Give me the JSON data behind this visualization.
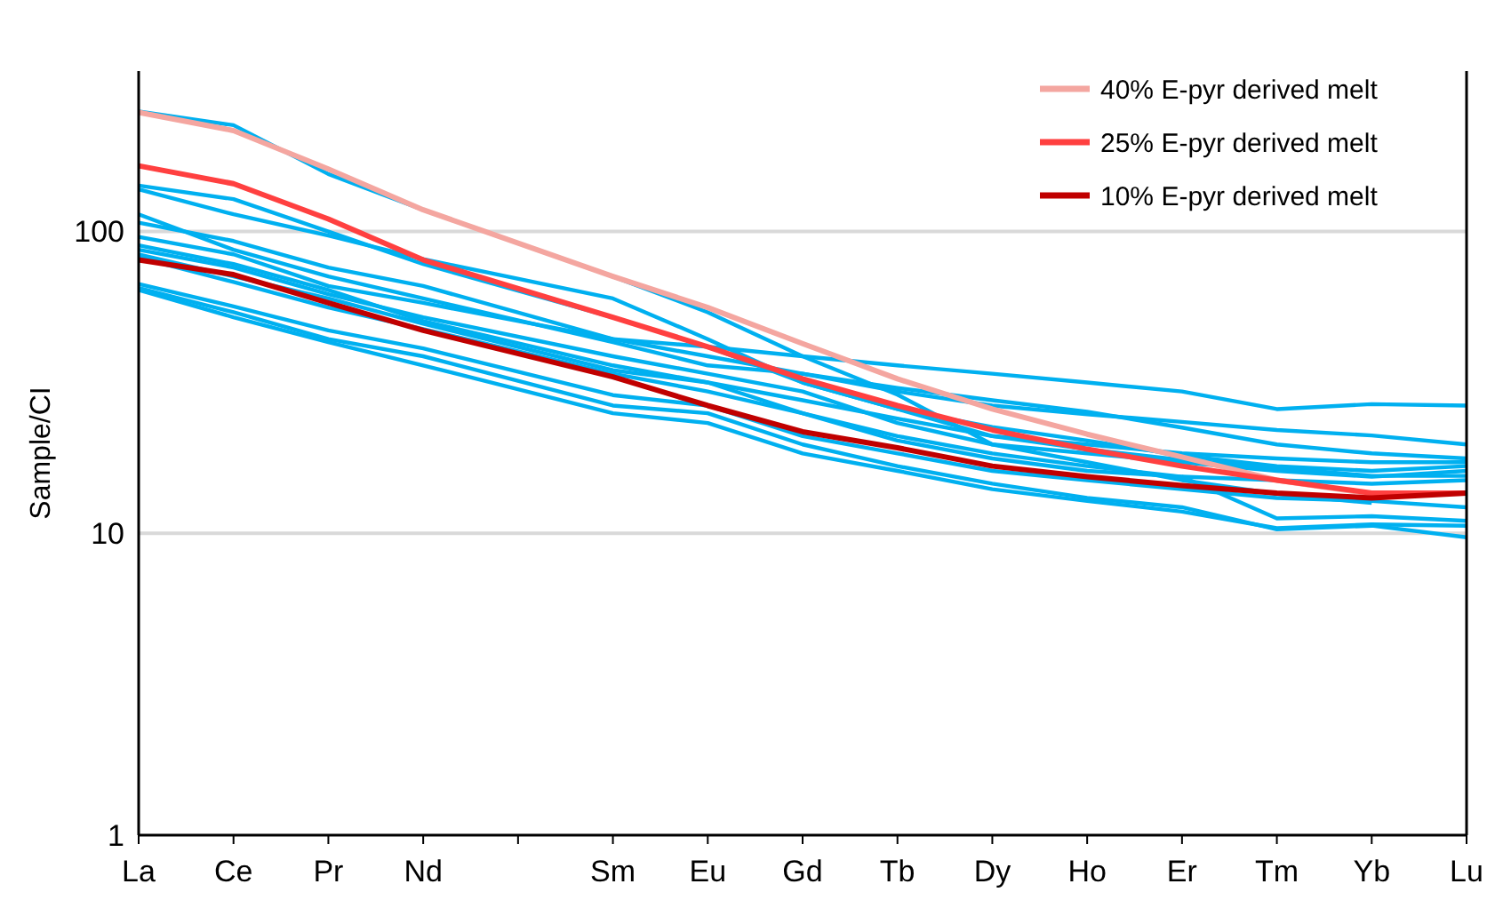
{
  "chart_data": {
    "type": "line",
    "ylabel": "Sample/CI",
    "log": true,
    "grid": "y",
    "legend": "top right",
    "line_style": "solid",
    "marker": "none",
    "categories": [
      "La",
      "Ce",
      "Pr",
      "Nd",
      null,
      "Sm",
      "Eu",
      "Gd",
      "Tb",
      "Dy",
      "Ho",
      "Er",
      "Tm",
      "Yb",
      "Lu"
    ],
    "ylim": [
      1,
      340
    ],
    "yticks": [
      1,
      10,
      100
    ],
    "series": [
      {
        "color": "#00b0f0",
        "values": [
          250,
          225,
          155,
          118,
          null,
          71,
          54,
          38.6,
          28.8,
          19.7,
          17.2,
          15,
          13.5,
          12.6,
          null
        ]
      },
      {
        "color": "#00b0f0",
        "values": [
          142,
          128,
          100,
          78,
          null,
          52,
          41.5,
          31.6,
          25.8,
          22.5,
          20.3,
          18.1,
          16.7,
          16.1,
          16.7
        ]
      },
      {
        "color": "#00b0f0",
        "values": [
          138,
          114,
          97,
          81,
          null,
          60,
          44,
          31.6,
          25.8,
          21,
          19,
          17.5,
          16.5,
          15.5,
          15.5
        ]
      },
      {
        "color": "#00b0f0",
        "values": [
          107,
          93,
          76,
          66,
          null,
          44,
          41.5,
          38.6,
          36,
          33.8,
          31.6,
          29.5,
          25.8,
          26.8,
          26.5
        ]
      },
      {
        "color": "#00b0f0",
        "values": [
          96,
          84,
          66,
          58,
          null,
          44,
          38.6,
          33.8,
          29.5,
          26.5,
          24.8,
          23.4,
          22,
          21.1,
          19.7
        ]
      },
      {
        "color": "#00b0f0",
        "values": [
          90,
          78,
          64,
          50.5,
          null,
          36,
          31.6,
          27.6,
          24,
          21,
          19.7,
          18.4,
          17.7,
          17.2,
          17.2
        ]
      },
      {
        "color": "#00b0f0",
        "values": [
          87,
          76,
          62,
          52,
          null,
          38.6,
          33.8,
          29.5,
          23.2,
          19.7,
          18.4,
          17.2,
          16.1,
          15.4,
          16.1
        ]
      },
      {
        "color": "#00b0f0",
        "values": [
          84,
          71,
          60,
          49.5,
          null,
          34.7,
          31.6,
          25,
          21,
          18.4,
          16.7,
          15.4,
          11.2,
          11.4,
          11
        ]
      },
      {
        "color": "#00b0f0",
        "values": [
          82,
          68,
          56,
          47.5,
          null,
          33.8,
          29.5,
          25,
          20.3,
          17.7,
          16.1,
          15.4,
          15,
          14.6,
          15
        ]
      },
      {
        "color": "#00b0f0",
        "values": [
          65,
          54,
          44,
          38.6,
          null,
          26.5,
          25,
          19.7,
          16.7,
          14.6,
          13.1,
          12.2,
          10.3,
          10.6,
          9.7
        ]
      },
      {
        "color": "#00b0f0",
        "values": [
          64,
          52,
          43,
          36,
          null,
          25,
          23.2,
          18.4,
          16.1,
          14,
          12.8,
          11.8,
          10.4,
          10.7,
          10.6
        ]
      },
      {
        "color": "#00b0f0",
        "values": [
          67,
          56.5,
          47,
          41,
          null,
          28.7,
          26.5,
          21,
          18.4,
          16.1,
          15,
          14,
          13.1,
          12.8,
          12.2
        ]
      },
      {
        "color": "#00b0f0",
        "values": [
          114,
          87,
          71,
          60,
          null,
          43,
          36,
          33.8,
          30.3,
          27.6,
          25.3,
          22.4,
          19.7,
          18.4,
          17.7
        ]
      },
      {
        "name": "40% E-pyr derived melt",
        "color": "#f4a6a0",
        "values": [
          248,
          216,
          161,
          118,
          null,
          71,
          56,
          42.5,
          32.5,
          25.8,
          21.3,
          17.9,
          15,
          13.5,
          13.6
        ]
      },
      {
        "name": "25% E-pyr derived melt",
        "color": "#ff4040",
        "values": [
          165,
          144,
          110,
          80.5,
          null,
          52,
          41.5,
          32.5,
          26.5,
          22,
          19,
          16.7,
          15,
          13.6,
          13.6
        ]
      },
      {
        "name": "10% E-pyr derived melt",
        "color": "#c00000",
        "values": [
          80.5,
          72,
          58,
          47,
          null,
          33,
          26.5,
          21.7,
          19.2,
          16.7,
          15.4,
          14.4,
          13.6,
          13.1,
          13.6
        ]
      }
    ]
  }
}
